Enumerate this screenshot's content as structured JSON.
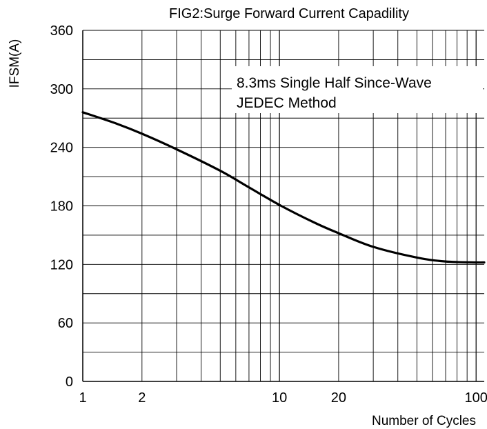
{
  "chart_data": {
    "type": "line",
    "title": "FIG2:Surge Forward Current Capadility",
    "xlabel": "Number of Cycles",
    "ylabel": "IFSM(A)",
    "x_scale": "log",
    "xlim": [
      1,
      110
    ],
    "ylim": [
      0,
      360
    ],
    "x_ticks": [
      1,
      2,
      10,
      20,
      100
    ],
    "x_tick_labels": [
      "1",
      "2",
      "10",
      "20",
      "100"
    ],
    "y_ticks": [
      0,
      60,
      120,
      180,
      240,
      300,
      360
    ],
    "y_tick_labels": [
      "0",
      "60",
      "120",
      "180",
      "240",
      "300",
      "360"
    ],
    "y_minor_step": 30,
    "grid": true,
    "annotation": [
      "8.3ms Single Half Since-Wave",
      "JEDEC Method"
    ],
    "series": [
      {
        "color": "#000000",
        "x": [
          1,
          1.5,
          2,
          3,
          5,
          7,
          10,
          15,
          20,
          30,
          50,
          70,
          100,
          110
        ],
        "y": [
          276,
          264,
          254,
          238,
          216,
          199,
          181,
          163,
          152,
          138,
          127,
          123,
          122,
          122
        ]
      }
    ]
  }
}
